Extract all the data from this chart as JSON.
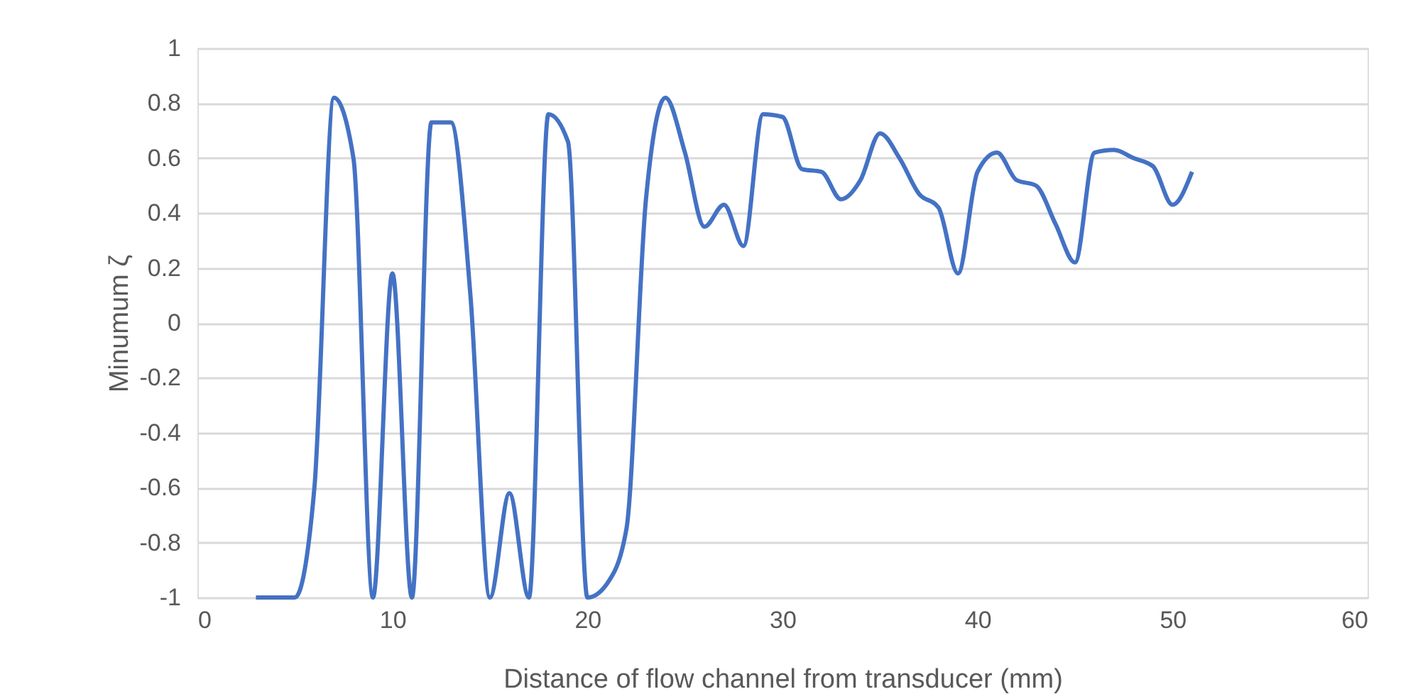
{
  "chart_data": {
    "type": "line",
    "xlabel": "Distance of flow channel from transducer (mm)",
    "ylabel": "Minumum ζ",
    "x": [
      3,
      4,
      5,
      6,
      7,
      8,
      9,
      10,
      11,
      12,
      13,
      14,
      15,
      16,
      17,
      18,
      19,
      20,
      21,
      22,
      23,
      24,
      25,
      26,
      27,
      28,
      29,
      30,
      31,
      32,
      33,
      34,
      35,
      36,
      37,
      38,
      39,
      40,
      41,
      42,
      43,
      44,
      45,
      46,
      47,
      48,
      49,
      50,
      51
    ],
    "series": [
      {
        "color": "#4472c4",
        "values": [
          -1,
          -1,
          -1,
          -0.6,
          0.82,
          0.6,
          -1,
          0.18,
          -1,
          0.73,
          0.73,
          0.1,
          -1,
          -0.62,
          -1,
          0.76,
          0.66,
          -1,
          -0.95,
          -0.75,
          0.45,
          0.82,
          0.62,
          0.35,
          0.43,
          0.28,
          0.76,
          0.75,
          0.56,
          0.55,
          0.45,
          0.52,
          0.69,
          0.6,
          0.47,
          0.42,
          0.18,
          0.55,
          0.62,
          0.52,
          0.5,
          0.36,
          0.22,
          0.62,
          0.63,
          0.6,
          0.57,
          0.43,
          0.55
        ]
      }
    ],
    "xlim": [
      0,
      60
    ],
    "xticks": [
      0,
      10,
      20,
      30,
      40,
      50,
      60
    ],
    "ylim": [
      -1,
      1
    ],
    "yticks": [
      -1,
      -0.8,
      -0.6,
      -0.4,
      -0.2,
      0,
      0.2,
      0.4,
      0.6,
      0.8,
      1
    ],
    "grid": "y",
    "legend": false,
    "marker": "none",
    "line_style": "solid"
  }
}
